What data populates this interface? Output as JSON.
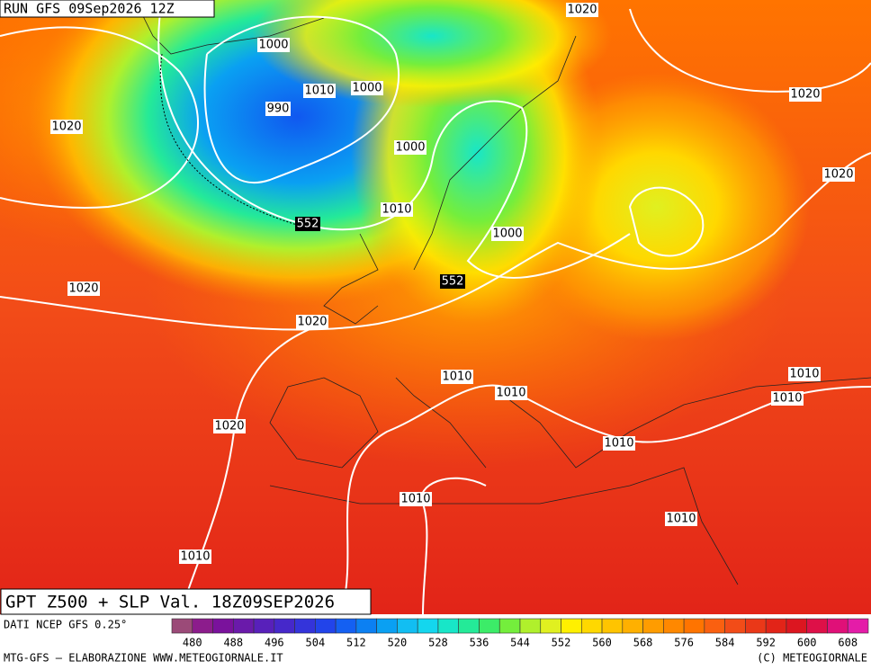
{
  "header": {
    "run": "RUN GFS 09Sep2026 12Z"
  },
  "map_labels": [
    "1020",
    "1000",
    "1010",
    "1000",
    "990",
    "1020",
    "1020",
    "1000",
    "1020",
    "552",
    "1010",
    "1000",
    "552",
    "1020",
    "1020",
    "1010",
    "1010",
    "1010",
    "1010",
    "1010",
    "1020",
    "1010",
    "1010",
    "1010"
  ],
  "title": "GPT Z500 + SLP Val. 18Z09SEP2026",
  "source": "DATI NCEP GFS 0.25°",
  "colorbar": {
    "colors": [
      "#9b4a78",
      "#8c1c8c",
      "#7a129c",
      "#6a1aaa",
      "#5820ba",
      "#4628ca",
      "#3434da",
      "#2244ea",
      "#1460f2",
      "#0c80f2",
      "#0aa0f2",
      "#12bef2",
      "#14d6ee",
      "#18e6c8",
      "#24ea98",
      "#3cec68",
      "#74ee3c",
      "#b0f02c",
      "#e0f020",
      "#fff000",
      "#ffd800",
      "#ffc400",
      "#ffb000",
      "#ff9c00",
      "#ff8800",
      "#ff7400",
      "#fa6010",
      "#f24c18",
      "#ea3818",
      "#e22418",
      "#dc1620",
      "#de1048",
      "#e01078",
      "#e41ca8"
    ],
    "ticks": [
      480,
      488,
      496,
      504,
      512,
      520,
      528,
      536,
      544,
      552,
      560,
      568,
      576,
      584,
      592,
      600,
      608
    ]
  },
  "footer": {
    "left": "MTG-GFS — ELABORAZIONE WWW.METEOGIORNALE.IT",
    "right": "(C) METEOGIORNALE"
  }
}
